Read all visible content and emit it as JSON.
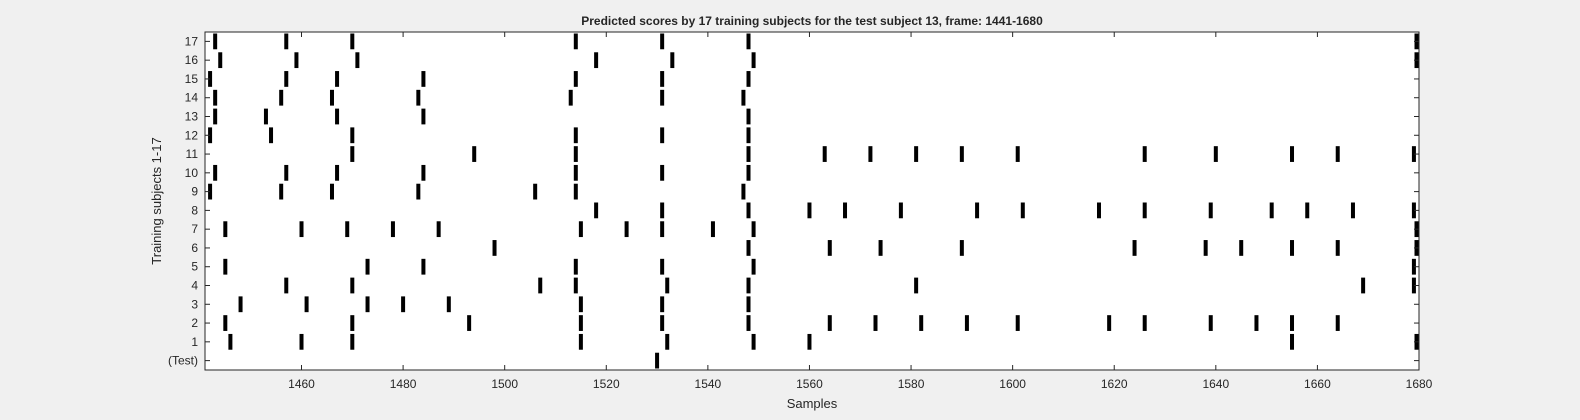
{
  "colors": {
    "figure_background": "#f0f0f0",
    "plot_background": "#ffffff",
    "mark_color": "#000000",
    "axis_color": "#262626"
  },
  "chart_data": {
    "type": "raster",
    "title": "Predicted scores by 17 training subjects for the test subject 13, frame: 1441-1680",
    "xlabel": "Samples",
    "ylabel": "Training subjects 1-17",
    "xlim": [
      1441,
      1680
    ],
    "ylim": [
      -0.5,
      17.5
    ],
    "xticks": [
      1460,
      1480,
      1500,
      1520,
      1540,
      1560,
      1580,
      1600,
      1620,
      1640,
      1660,
      1680
    ],
    "yticks": [
      0,
      1,
      2,
      3,
      4,
      5,
      6,
      7,
      8,
      9,
      10,
      11,
      12,
      13,
      14,
      15,
      16,
      17
    ],
    "yticklabels": [
      "(Test)",
      "1",
      "2",
      "3",
      "4",
      "5",
      "6",
      "7",
      "8",
      "9",
      "10",
      "11",
      "12",
      "13",
      "14",
      "15",
      "16",
      "17"
    ],
    "grid": false,
    "legend": "none",
    "rows": [
      {
        "label": "(Test)",
        "events": [
          1530
        ]
      },
      {
        "label": "1",
        "events": [
          1446,
          1460,
          1470,
          1515,
          1532,
          1549,
          1560,
          1655,
          1680
        ]
      },
      {
        "label": "2",
        "events": [
          1445,
          1470,
          1493,
          1515,
          1531,
          1548,
          1564,
          1573,
          1582,
          1591,
          1601,
          1619,
          1626,
          1639,
          1648,
          1655,
          1664
        ]
      },
      {
        "label": "3",
        "events": [
          1448,
          1461,
          1473,
          1480,
          1489,
          1515,
          1531,
          1548
        ]
      },
      {
        "label": "4",
        "events": [
          1457,
          1470,
          1507,
          1514,
          1532,
          1548,
          1581,
          1669,
          1679
        ]
      },
      {
        "label": "5",
        "events": [
          1445,
          1473,
          1484,
          1514,
          1531,
          1549,
          1679
        ]
      },
      {
        "label": "6",
        "events": [
          1498,
          1548,
          1564,
          1574,
          1590,
          1624,
          1638,
          1645,
          1655,
          1664,
          1680
        ]
      },
      {
        "label": "7",
        "events": [
          1445,
          1460,
          1469,
          1478,
          1487,
          1515,
          1524,
          1531,
          1541,
          1549,
          1680
        ]
      },
      {
        "label": "8",
        "events": [
          1518,
          1531,
          1548,
          1560,
          1567,
          1578,
          1593,
          1602,
          1617,
          1626,
          1639,
          1651,
          1658,
          1667,
          1679
        ]
      },
      {
        "label": "9",
        "events": [
          1442,
          1456,
          1466,
          1483,
          1506,
          1514,
          1547
        ]
      },
      {
        "label": "10",
        "events": [
          1443,
          1457,
          1467,
          1484,
          1514,
          1531,
          1548
        ]
      },
      {
        "label": "11",
        "events": [
          1470,
          1494,
          1514,
          1548,
          1563,
          1572,
          1581,
          1590,
          1601,
          1626,
          1640,
          1655,
          1664,
          1679
        ]
      },
      {
        "label": "12",
        "events": [
          1442,
          1454,
          1470,
          1514,
          1531,
          1548
        ]
      },
      {
        "label": "13",
        "events": [
          1443,
          1453,
          1467,
          1484,
          1548
        ]
      },
      {
        "label": "14",
        "events": [
          1443,
          1456,
          1466,
          1483,
          1513,
          1531,
          1547
        ]
      },
      {
        "label": "15",
        "events": [
          1442,
          1457,
          1467,
          1484,
          1514,
          1531,
          1548
        ]
      },
      {
        "label": "16",
        "events": [
          1444,
          1459,
          1471,
          1518,
          1533,
          1549,
          1680
        ]
      },
      {
        "label": "17",
        "events": [
          1443,
          1457,
          1470,
          1514,
          1531,
          1548,
          1680
        ]
      }
    ]
  }
}
